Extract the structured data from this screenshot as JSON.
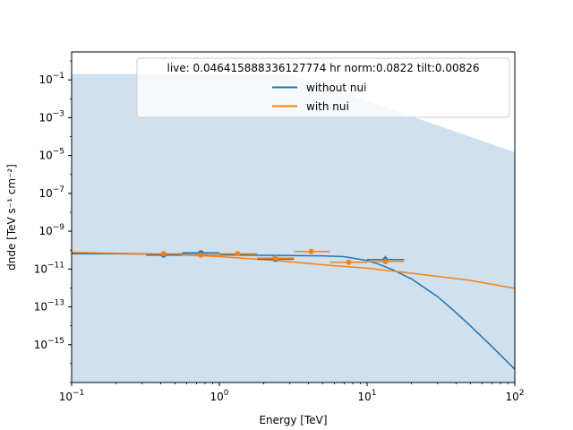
{
  "chart_data": {
    "type": "line",
    "xlabel": "Energy [TeV]",
    "ylabel": "dnde [TeV s⁻¹ cm⁻²]",
    "x_scale": "log",
    "y_scale": "log",
    "xlim": [
      0.1,
      100
    ],
    "ylim": [
      1e-17,
      3
    ],
    "x_ticks": [
      {
        "value": 0.1,
        "base": "10",
        "exp": "−1"
      },
      {
        "value": 1,
        "base": "10",
        "exp": "0"
      },
      {
        "value": 10,
        "base": "10",
        "exp": "1"
      },
      {
        "value": 100,
        "base": "10",
        "exp": "2"
      }
    ],
    "y_ticks": [
      {
        "value": 1e-15,
        "base": "10",
        "exp": "−15"
      },
      {
        "value": 1e-13,
        "base": "10",
        "exp": "−13"
      },
      {
        "value": 1e-11,
        "base": "10",
        "exp": "−11"
      },
      {
        "value": 1e-09,
        "base": "10",
        "exp": "−9"
      },
      {
        "value": 1e-07,
        "base": "10",
        "exp": "−7"
      },
      {
        "value": 1e-05,
        "base": "10",
        "exp": "−5"
      },
      {
        "value": 0.001,
        "base": "10",
        "exp": "−3"
      },
      {
        "value": 0.1,
        "base": "10",
        "exp": "−1"
      }
    ],
    "legend": {
      "title": "live: 0.046415888336127774 hr norm:0.0822 tilt:0.00826",
      "placement": "top-right"
    },
    "band": {
      "color": "#cfe0ee",
      "upper": [
        [
          0.1,
          0.2
        ],
        [
          3.0,
          0.2
        ],
        [
          100,
          1.5e-05
        ]
      ],
      "lower": [
        [
          0.1,
          1e-17
        ],
        [
          100,
          1e-17
        ]
      ]
    },
    "series": [
      {
        "name": "without nui",
        "color": "#1f77b4",
        "x": [
          0.1,
          0.2,
          0.4,
          0.7,
          1,
          2,
          3,
          5,
          7,
          10,
          12,
          15,
          20,
          30,
          40,
          50,
          70,
          100
        ],
        "y": [
          6.5e-11,
          6.5e-11,
          6.1e-11,
          5.8e-11,
          5.6e-11,
          5.3e-11,
          5.2e-11,
          5e-11,
          4.5e-11,
          2.8e-11,
          1.8e-11,
          9e-12,
          3e-12,
          3.5e-13,
          5e-14,
          1e-14,
          8e-16,
          5e-17
        ]
      },
      {
        "name": "with nui",
        "color": "#ff7f0e",
        "x": [
          0.1,
          0.3,
          0.5,
          1,
          2,
          3,
          5,
          10,
          20,
          50,
          100
        ],
        "y": [
          7.5e-11,
          6.5e-11,
          5.8e-11,
          4.5e-11,
          3.1e-11,
          2.4e-11,
          1.7e-11,
          1.1e-11,
          6e-12,
          2.5e-12,
          9.5e-13
        ]
      }
    ],
    "points": [
      {
        "series": "without nui",
        "x": 0.42,
        "y": 5.5e-11,
        "xlo": 0.32,
        "xhi": 0.56
      },
      {
        "series": "without nui",
        "x": 0.75,
        "y": 7.2e-11,
        "xlo": 0.56,
        "xhi": 1.0
      },
      {
        "series": "without nui",
        "x": 2.4,
        "y": 3.3e-11,
        "xlo": 1.8,
        "xhi": 3.2
      },
      {
        "series": "without nui",
        "x": 13.3,
        "y": 3.2e-11,
        "xlo": 10,
        "xhi": 17.8,
        "ylo": 1.8e-11,
        "yhi": 5e-11
      },
      {
        "series": "with nui",
        "x": 0.42,
        "y": 6.5e-11,
        "xlo": 0.32,
        "xhi": 0.56
      },
      {
        "series": "with nui",
        "x": 0.75,
        "y": 5.5e-11,
        "xlo": 0.56,
        "xhi": 1.0
      },
      {
        "series": "with nui",
        "x": 1.33,
        "y": 6.5e-11,
        "xlo": 1.0,
        "xhi": 1.8
      },
      {
        "series": "with nui",
        "x": 2.4,
        "y": 3.8e-11,
        "xlo": 1.8,
        "xhi": 3.2
      },
      {
        "series": "with nui",
        "x": 4.2,
        "y": 8.5e-11,
        "xlo": 3.2,
        "xhi": 5.6
      },
      {
        "series": "with nui",
        "x": 7.5,
        "y": 2.3e-11,
        "xlo": 5.6,
        "xhi": 10
      },
      {
        "series": "with nui",
        "x": 13.3,
        "y": 2.5e-11,
        "xlo": 10,
        "xhi": 17.8,
        "ylo": 1.8e-11,
        "yhi": 3.5e-11
      }
    ]
  }
}
